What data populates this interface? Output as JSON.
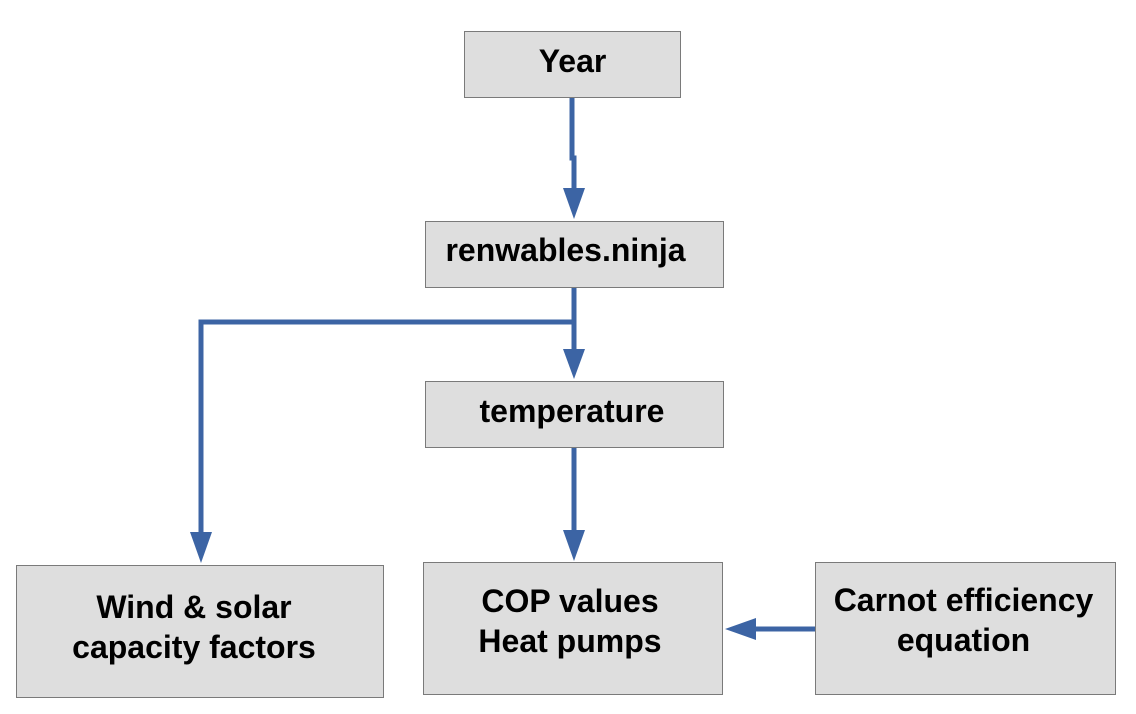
{
  "nodes": {
    "year": {
      "lines": [
        "Year"
      ]
    },
    "ninja": {
      "lines": [
        "renwables.ninja"
      ]
    },
    "temperature": {
      "lines": [
        "temperature"
      ]
    },
    "wind_solar": {
      "lines": [
        "Wind & solar",
        "capacity factors"
      ]
    },
    "cop": {
      "lines": [
        "COP values",
        "Heat pumps"
      ]
    },
    "carnot": {
      "lines": [
        "Carnot efficiency",
        "equation"
      ]
    }
  },
  "edges": [
    {
      "from": "year",
      "to": "ninja"
    },
    {
      "from": "ninja",
      "to": "temperature"
    },
    {
      "from": "ninja",
      "to": "wind_solar"
    },
    {
      "from": "temperature",
      "to": "cop"
    },
    {
      "from": "carnot",
      "to": "cop"
    }
  ],
  "colors": {
    "node_fill": "#dedede",
    "node_border": "#7a7a7a",
    "connector": "#3c64a4",
    "text": "#000000"
  }
}
